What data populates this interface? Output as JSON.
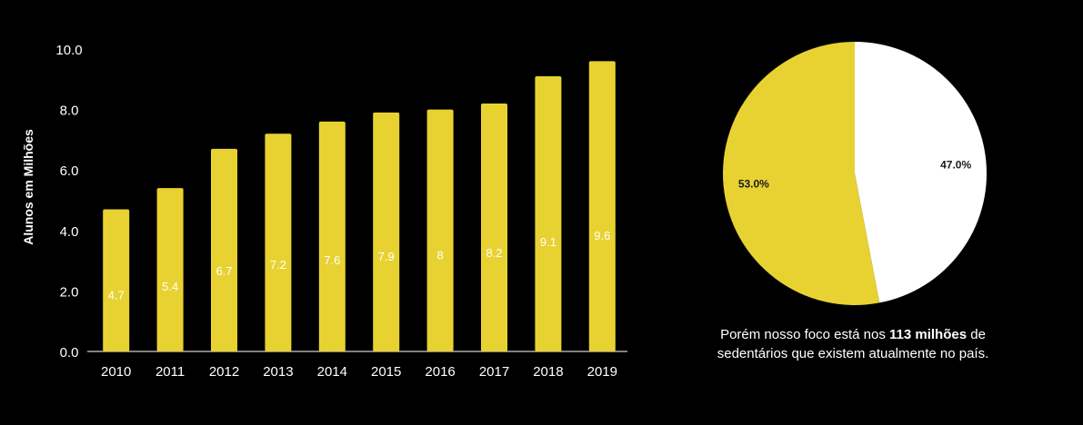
{
  "chart_data": [
    {
      "type": "bar",
      "ylabel": "Alunos em Milhões",
      "xlabel": "",
      "ylim": [
        0,
        10
      ],
      "y_ticks": [
        "0.0",
        "2.0",
        "4.0",
        "6.0",
        "8.0",
        "10.0"
      ],
      "categories": [
        "2010",
        "2011",
        "2012",
        "2013",
        "2014",
        "2015",
        "2016",
        "2017",
        "2018",
        "2019"
      ],
      "values": [
        4.7,
        5.4,
        6.7,
        7.2,
        7.6,
        7.9,
        8,
        8.2,
        9.1,
        9.6
      ],
      "value_labels": [
        "4.7",
        "5.4",
        "6.7",
        "7.2",
        "7.6",
        "7.9",
        "8",
        "8.2",
        "9.1",
        "9.6"
      ],
      "grid": false,
      "colors": {
        "bar": "#E8D232",
        "text": "#FFFFFF",
        "axis": "#FFFFFF"
      }
    },
    {
      "type": "pie",
      "slices": [
        {
          "label": "47.0%",
          "value": 47.0,
          "color": "#FFFFFF"
        },
        {
          "label": "53.0%",
          "value": 53.0,
          "color": "#E8D232"
        }
      ],
      "start": "top",
      "direction": "clockwise",
      "colors": {
        "label_text": "#1A1A1A"
      }
    }
  ],
  "caption": {
    "part1": "Porém nosso foco está nos ",
    "bold1": "113 milhões",
    "part2": " de sedentários que existem atualmente no país."
  }
}
